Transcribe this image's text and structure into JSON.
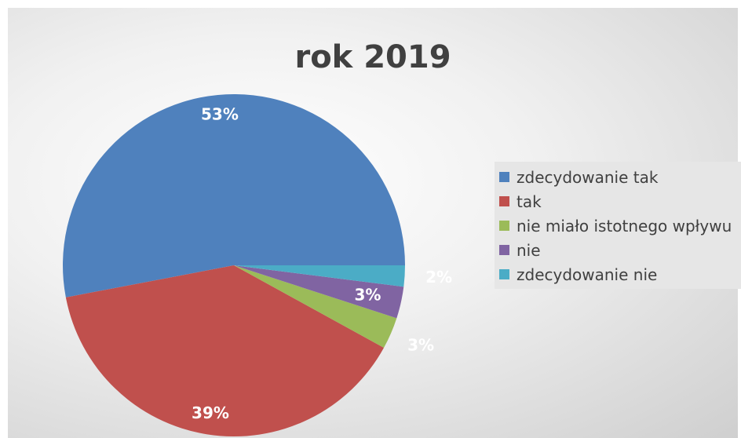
{
  "chart_data": {
    "type": "pie",
    "title": "rok 2019",
    "legend_position": "right",
    "categories": [
      "zdecydowanie tak",
      "tak",
      "nie miało istotnego wpływu",
      "nie",
      "zdecydowanie nie"
    ],
    "values": [
      53,
      39,
      3,
      3,
      2
    ],
    "data_labels": [
      "53%",
      "39%",
      "3%",
      "3%",
      "2%"
    ],
    "colors": [
      "#4f81bd",
      "#c0504d",
      "#9bbb59",
      "#8064a2",
      "#4bacc6"
    ],
    "label_colors": [
      "#ffffff",
      "#ffffff",
      "#ffffff",
      "#ffffff",
      "#ffffff"
    ]
  }
}
